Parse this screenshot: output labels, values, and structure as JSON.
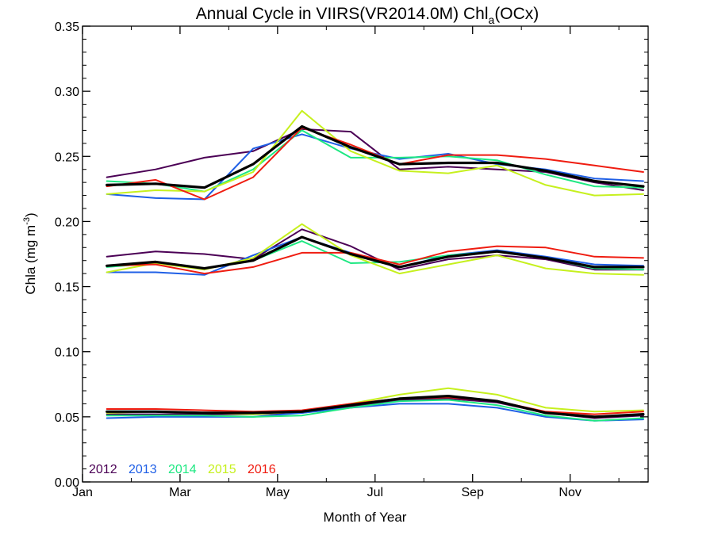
{
  "chart_data": {
    "type": "line",
    "title": {
      "main": "Annual Cycle in VIIRS(VR2014.0M) Chl",
      "sub": "a",
      "suffix": "(OCx)"
    },
    "xlabel": "Month of Year",
    "ylabel": {
      "main": "Chla (mg m",
      "sup": "-3",
      "end": ")"
    },
    "xlim": [
      1,
      12.6
    ],
    "ylim": [
      0.0,
      0.35
    ],
    "x_ticks": [
      {
        "value": 1,
        "label": "Jan"
      },
      {
        "value": 3,
        "label": "Mar"
      },
      {
        "value": 5,
        "label": "May"
      },
      {
        "value": 7,
        "label": "Jul"
      },
      {
        "value": 9,
        "label": "Sep"
      },
      {
        "value": 11,
        "label": "Nov"
      }
    ],
    "y_ticks": [
      {
        "value": 0.0,
        "label": "0.00"
      },
      {
        "value": 0.05,
        "label": "0.05"
      },
      {
        "value": 0.1,
        "label": "0.10"
      },
      {
        "value": 0.15,
        "label": "0.15"
      },
      {
        "value": 0.2,
        "label": "0.20"
      },
      {
        "value": 0.25,
        "label": "0.25"
      },
      {
        "value": 0.3,
        "label": "0.30"
      },
      {
        "value": 0.35,
        "label": "0.35"
      }
    ],
    "grid": false,
    "legend_position": "bottom-left",
    "legend": [
      {
        "label": "2012",
        "color": "#4b0055"
      },
      {
        "label": "2013",
        "color": "#1f5fe6"
      },
      {
        "label": "2014",
        "color": "#1ee882"
      },
      {
        "label": "2015",
        "color": "#c6f01e"
      },
      {
        "label": "2016",
        "color": "#ef1c10"
      }
    ],
    "x": [
      1.5,
      2.5,
      3.5,
      4.5,
      5.5,
      6.5,
      7.5,
      8.5,
      9.5,
      10.5,
      11.5,
      12.5
    ],
    "groups": [
      {
        "series": [
          {
            "color": "#4b0055",
            "width": 2,
            "values": [
              0.234,
              0.24,
              0.249,
              0.254,
              0.271,
              0.269,
              0.24,
              0.242,
              0.24,
              0.238,
              0.23,
              0.224
            ]
          },
          {
            "color": "#1f5fe6",
            "width": 2,
            "values": [
              0.221,
              0.218,
              0.217,
              0.256,
              0.267,
              0.256,
              0.248,
              0.252,
              0.244,
              0.24,
              0.233,
              0.231
            ]
          },
          {
            "color": "#1ee882",
            "width": 2,
            "values": [
              0.231,
              0.229,
              0.223,
              0.24,
              0.27,
              0.249,
              0.249,
              0.25,
              0.247,
              0.236,
              0.227,
              0.226
            ]
          },
          {
            "color": "#c6f01e",
            "width": 2,
            "values": [
              0.221,
              0.224,
              0.223,
              0.238,
              0.285,
              0.254,
              0.239,
              0.237,
              0.243,
              0.228,
              0.22,
              0.221
            ]
          },
          {
            "color": "#ef1c10",
            "width": 2,
            "values": [
              0.227,
              0.232,
              0.217,
              0.234,
              0.272,
              0.259,
              0.244,
              0.251,
              0.251,
              0.248,
              0.243,
              0.238
            ]
          },
          {
            "color": "#000000",
            "width": 3.2,
            "values": [
              0.228,
              0.229,
              0.226,
              0.244,
              0.273,
              0.257,
              0.244,
              0.245,
              0.245,
              0.239,
              0.231,
              0.227
            ]
          }
        ]
      },
      {
        "series": [
          {
            "color": "#4b0055",
            "width": 2,
            "values": [
              0.173,
              0.177,
              0.175,
              0.171,
              0.194,
              0.181,
              0.163,
              0.171,
              0.174,
              0.171,
              0.163,
              0.163
            ]
          },
          {
            "color": "#1f5fe6",
            "width": 2,
            "values": [
              0.161,
              0.161,
              0.159,
              0.174,
              0.188,
              0.176,
              0.165,
              0.174,
              0.178,
              0.173,
              0.167,
              0.166
            ]
          },
          {
            "color": "#1ee882",
            "width": 2,
            "values": [
              0.165,
              0.168,
              0.164,
              0.17,
              0.185,
              0.168,
              0.169,
              0.174,
              0.177,
              0.172,
              0.164,
              0.163
            ]
          },
          {
            "color": "#c6f01e",
            "width": 2,
            "values": [
              0.161,
              0.168,
              0.163,
              0.172,
              0.198,
              0.174,
              0.16,
              0.167,
              0.174,
              0.164,
              0.16,
              0.159
            ]
          },
          {
            "color": "#ef1c10",
            "width": 2,
            "values": [
              0.166,
              0.167,
              0.16,
              0.165,
              0.176,
              0.176,
              0.167,
              0.177,
              0.181,
              0.18,
              0.173,
              0.172
            ]
          },
          {
            "color": "#000000",
            "width": 3.2,
            "values": [
              0.166,
              0.169,
              0.164,
              0.17,
              0.188,
              0.175,
              0.165,
              0.173,
              0.177,
              0.172,
              0.165,
              0.165
            ]
          }
        ]
      },
      {
        "series": [
          {
            "color": "#4b0055",
            "width": 2,
            "values": [
              0.052,
              0.052,
              0.052,
              0.052,
              0.053,
              0.058,
              0.063,
              0.064,
              0.061,
              0.053,
              0.049,
              0.051
            ]
          },
          {
            "color": "#1f5fe6",
            "width": 2,
            "values": [
              0.049,
              0.05,
              0.05,
              0.05,
              0.053,
              0.057,
              0.06,
              0.06,
              0.057,
              0.05,
              0.047,
              0.048
            ]
          },
          {
            "color": "#1ee882",
            "width": 2,
            "values": [
              0.051,
              0.051,
              0.051,
              0.05,
              0.051,
              0.057,
              0.062,
              0.063,
              0.059,
              0.051,
              0.047,
              0.049
            ]
          },
          {
            "color": "#c6f01e",
            "width": 2,
            "values": [
              0.053,
              0.054,
              0.053,
              0.052,
              0.054,
              0.06,
              0.067,
              0.072,
              0.067,
              0.057,
              0.054,
              0.055
            ]
          },
          {
            "color": "#ef1c10",
            "width": 2,
            "values": [
              0.056,
              0.056,
              0.055,
              0.054,
              0.055,
              0.06,
              0.064,
              0.065,
              0.062,
              0.054,
              0.052,
              0.054
            ]
          },
          {
            "color": "#000000",
            "width": 3.2,
            "values": [
              0.054,
              0.054,
              0.053,
              0.053,
              0.054,
              0.059,
              0.064,
              0.066,
              0.062,
              0.053,
              0.05,
              0.052
            ]
          }
        ]
      }
    ]
  }
}
